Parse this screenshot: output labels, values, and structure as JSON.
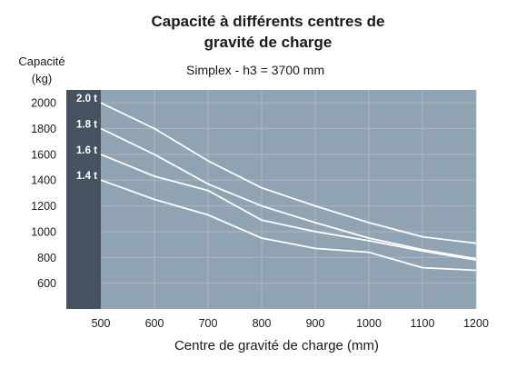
{
  "chart_data": {
    "type": "line",
    "title_line1": "Capacité à différents centres de",
    "title_line2": "gravité de charge",
    "subtitle": "Simplex - h3 = 3700 mm",
    "ylabel_line1": "Capacité",
    "ylabel_line2": "(kg)",
    "xlabel": "Centre de gravité de charge (mm)",
    "x_ticks": [
      "500",
      "600",
      "700",
      "800",
      "900",
      "1000",
      "1100",
      "1200"
    ],
    "y_ticks": [
      "2000",
      "1800",
      "1600",
      "1400",
      "1200",
      "1000",
      "800",
      "600"
    ],
    "xlim": [
      500,
      1200
    ],
    "ylim": [
      400,
      2100
    ],
    "grid": true,
    "colors": {
      "plot_bg": "#8fa3b2",
      "band": "#44535f",
      "grid": "#aab8c3",
      "line": "#ffffff"
    },
    "series": [
      {
        "name": "2.0 t",
        "x": [
          500,
          600,
          700,
          800,
          900,
          1000,
          1100,
          1200
        ],
        "values": [
          2000,
          1800,
          1550,
          1340,
          1200,
          1070,
          960,
          910
        ]
      },
      {
        "name": "1.8 t",
        "x": [
          500,
          600,
          700,
          800,
          900,
          1000,
          1100,
          1200
        ],
        "values": [
          1800,
          1600,
          1370,
          1200,
          1070,
          950,
          860,
          790
        ]
      },
      {
        "name": "1.6 t",
        "x": [
          500,
          600,
          700,
          800,
          900,
          1000,
          1100,
          1200
        ],
        "values": [
          1600,
          1430,
          1320,
          1090,
          1000,
          930,
          850,
          780
        ]
      },
      {
        "name": "1.4 t",
        "x": [
          500,
          600,
          700,
          800,
          900,
          1000,
          1100,
          1200
        ],
        "values": [
          1400,
          1250,
          1130,
          950,
          870,
          840,
          720,
          700
        ]
      }
    ]
  }
}
